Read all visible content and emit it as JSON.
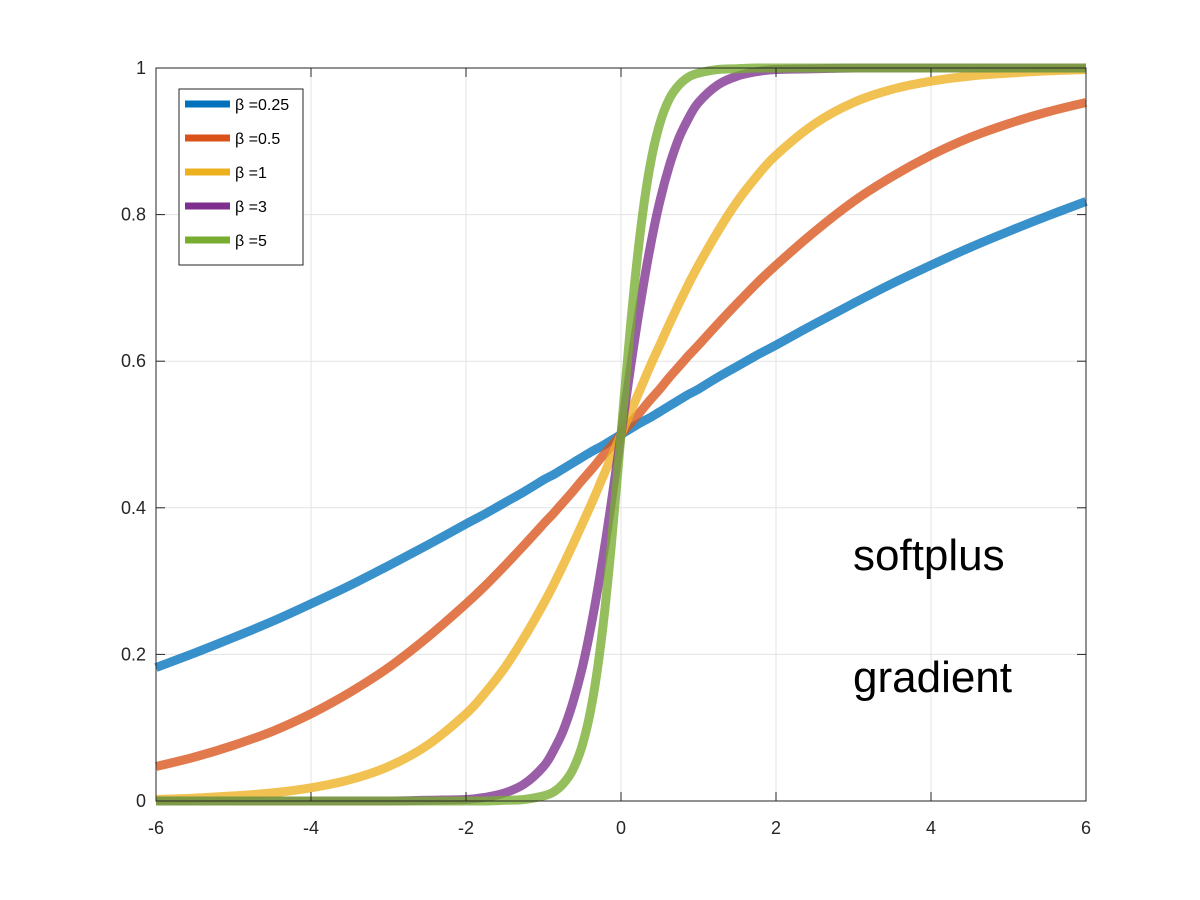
{
  "chart_data": {
    "type": "line",
    "title": "",
    "xlabel": "",
    "ylabel": "",
    "xlim": [
      -6,
      6
    ],
    "ylim": [
      0,
      1
    ],
    "x_ticks": [
      -6,
      -4,
      -2,
      0,
      2,
      4,
      6
    ],
    "y_ticks": [
      0,
      0.2,
      0.4,
      0.6,
      0.8,
      1
    ],
    "x_tick_labels": [
      "-6",
      "-4",
      "-2",
      "0",
      "2",
      "4",
      "6"
    ],
    "y_tick_labels": [
      "0",
      "0.2",
      "0.4",
      "0.6",
      "0.8",
      "1"
    ],
    "grid": true,
    "legend_position": "top-left",
    "x": [
      -6,
      -5.5,
      -5,
      -4.5,
      -4,
      -3.5,
      -3,
      -2.5,
      -2,
      -1.75,
      -1.5,
      -1.25,
      -1,
      -0.875,
      -0.75,
      -0.625,
      -0.5,
      -0.375,
      -0.25,
      -0.125,
      0,
      0.125,
      0.25,
      0.375,
      0.5,
      0.625,
      0.75,
      0.875,
      1,
      1.25,
      1.5,
      1.75,
      2,
      2.5,
      3,
      3.5,
      4,
      4.5,
      5,
      5.5,
      6
    ],
    "series": [
      {
        "name": "β =0.25",
        "color": "#0072BD",
        "values": [
          0.182,
          0.202,
          0.223,
          0.245,
          0.269,
          0.294,
          0.321,
          0.349,
          0.378,
          0.392,
          0.407,
          0.422,
          0.438,
          0.445,
          0.453,
          0.461,
          0.469,
          0.477,
          0.484,
          0.492,
          0.5,
          0.508,
          0.516,
          0.523,
          0.531,
          0.539,
          0.547,
          0.555,
          0.562,
          0.578,
          0.593,
          0.608,
          0.622,
          0.651,
          0.679,
          0.706,
          0.731,
          0.755,
          0.777,
          0.798,
          0.818
        ]
      },
      {
        "name": "β =0.5",
        "color": "#D95319",
        "values": [
          0.047,
          0.06,
          0.076,
          0.095,
          0.119,
          0.148,
          0.182,
          0.223,
          0.269,
          0.294,
          0.321,
          0.349,
          0.378,
          0.392,
          0.407,
          0.422,
          0.438,
          0.453,
          0.469,
          0.484,
          0.5,
          0.516,
          0.531,
          0.547,
          0.562,
          0.578,
          0.593,
          0.608,
          0.622,
          0.651,
          0.679,
          0.706,
          0.731,
          0.777,
          0.818,
          0.852,
          0.881,
          0.905,
          0.924,
          0.94,
          0.953
        ]
      },
      {
        "name": "β =1",
        "color": "#EDB120",
        "values": [
          0.002,
          0.004,
          0.007,
          0.011,
          0.018,
          0.029,
          0.047,
          0.076,
          0.119,
          0.148,
          0.182,
          0.223,
          0.269,
          0.294,
          0.321,
          0.349,
          0.378,
          0.407,
          0.438,
          0.469,
          0.5,
          0.531,
          0.562,
          0.593,
          0.622,
          0.651,
          0.679,
          0.706,
          0.731,
          0.777,
          0.818,
          0.852,
          0.881,
          0.924,
          0.953,
          0.971,
          0.982,
          0.989,
          0.993,
          0.996,
          0.998
        ]
      },
      {
        "name": "β =3",
        "color": "#7E2F8E",
        "values": [
          0,
          0,
          0,
          0,
          0,
          0,
          0,
          0.001,
          0.002,
          0.005,
          0.011,
          0.023,
          0.047,
          0.068,
          0.095,
          0.133,
          0.182,
          0.245,
          0.321,
          0.407,
          0.5,
          0.593,
          0.679,
          0.755,
          0.818,
          0.867,
          0.905,
          0.932,
          0.953,
          0.977,
          0.989,
          0.995,
          0.998,
          0.999,
          1,
          1,
          1,
          1,
          1,
          1,
          1
        ]
      },
      {
        "name": "β =5",
        "color": "#77AC30",
        "values": [
          0,
          0,
          0,
          0,
          0,
          0,
          0,
          0,
          0,
          0,
          0.001,
          0.002,
          0.007,
          0.012,
          0.023,
          0.042,
          0.076,
          0.133,
          0.223,
          0.349,
          0.5,
          0.651,
          0.777,
          0.867,
          0.924,
          0.958,
          0.977,
          0.988,
          0.993,
          0.998,
          0.999,
          1,
          1,
          1,
          1,
          1,
          1,
          1,
          1,
          1,
          1
        ]
      }
    ],
    "annotations": [
      "softplus",
      "gradient"
    ]
  }
}
